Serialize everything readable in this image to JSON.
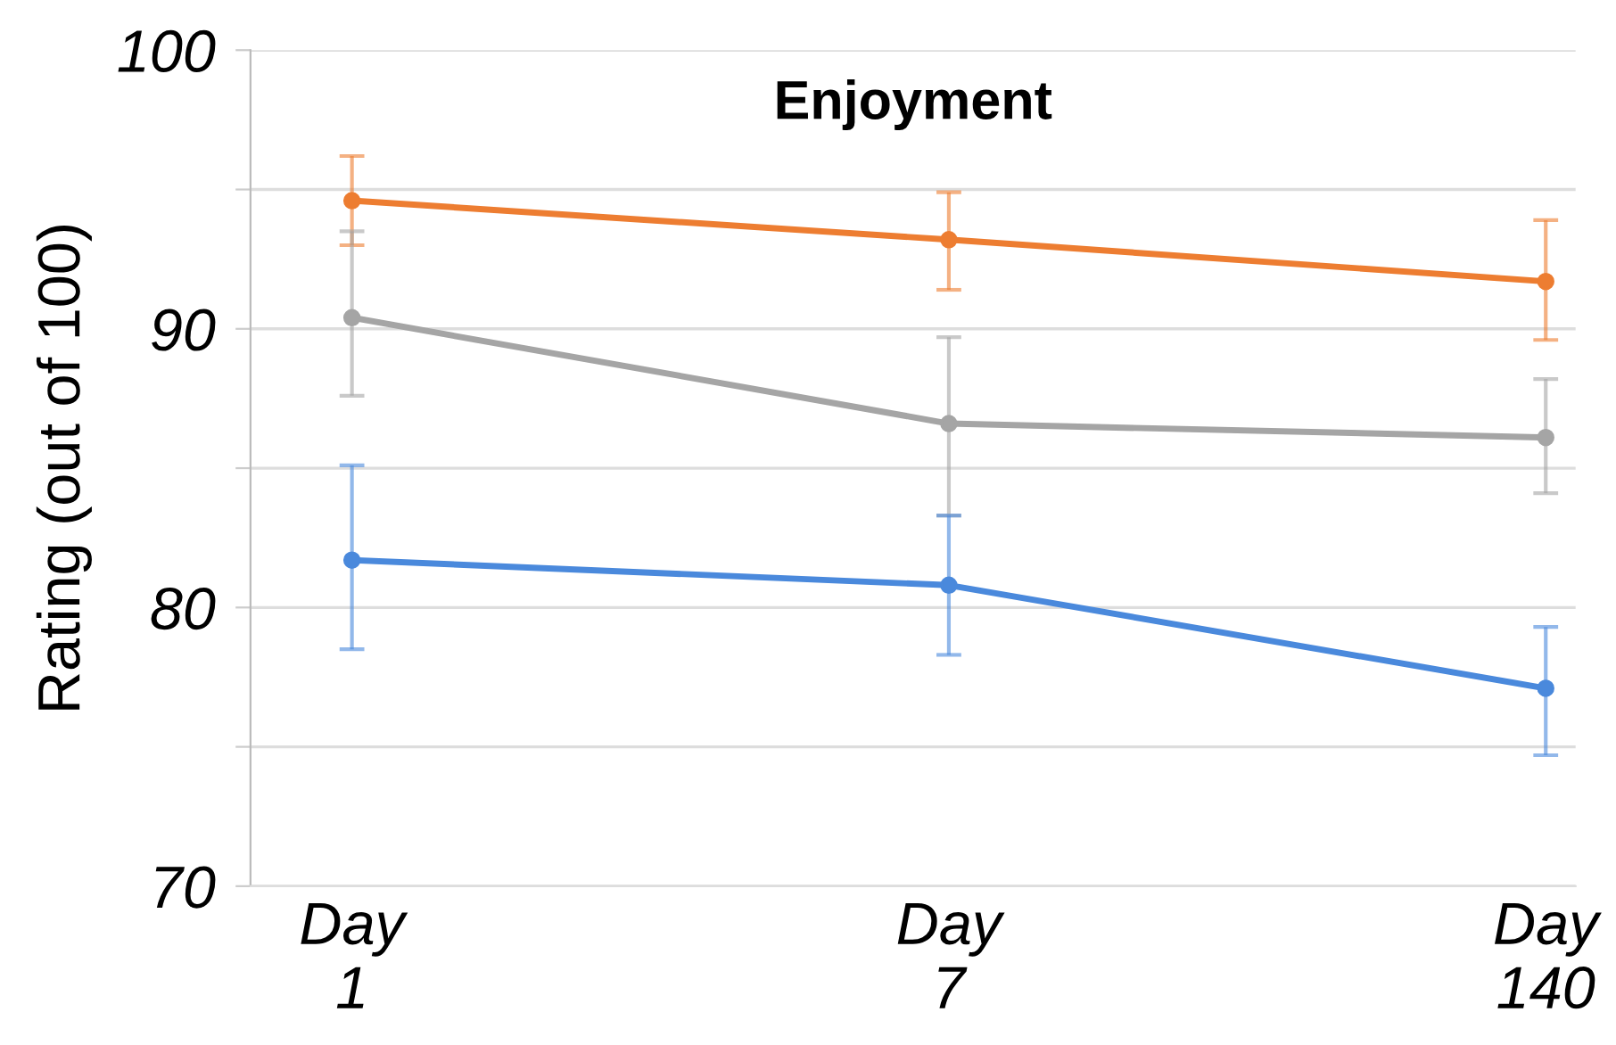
{
  "chart_data": {
    "type": "line",
    "title": "Enjoyment",
    "ylabel": "Rating (out of 100)",
    "categories": [
      "Day\n1",
      "Day\n7",
      "Day\n140"
    ],
    "series": [
      {
        "color": "#ed7d31",
        "values": [
          94.6,
          93.2,
          91.7
        ],
        "errors": [
          [
            93.0,
            96.2
          ],
          [
            91.4,
            94.9
          ],
          [
            89.6,
            93.9
          ]
        ]
      },
      {
        "color": "#a5a5a5",
        "values": [
          90.4,
          86.6,
          86.1
        ],
        "errors": [
          [
            87.6,
            93.5
          ],
          [
            83.3,
            89.7
          ],
          [
            84.1,
            88.2
          ]
        ]
      },
      {
        "color": "#4a89dc",
        "values": [
          81.7,
          80.8,
          77.1
        ],
        "errors": [
          [
            78.5,
            85.1
          ],
          [
            78.3,
            83.3
          ],
          [
            74.7,
            79.3
          ]
        ]
      }
    ],
    "ylim": [
      70,
      100
    ],
    "yticks": [
      70,
      {
        "value": 75,
        "label": null
      },
      80,
      {
        "value": 85,
        "label": null
      },
      90,
      {
        "value": 95,
        "label": null
      },
      100
    ],
    "grid": "y",
    "marker": "circle",
    "line_style": "solid",
    "legend": false
  }
}
